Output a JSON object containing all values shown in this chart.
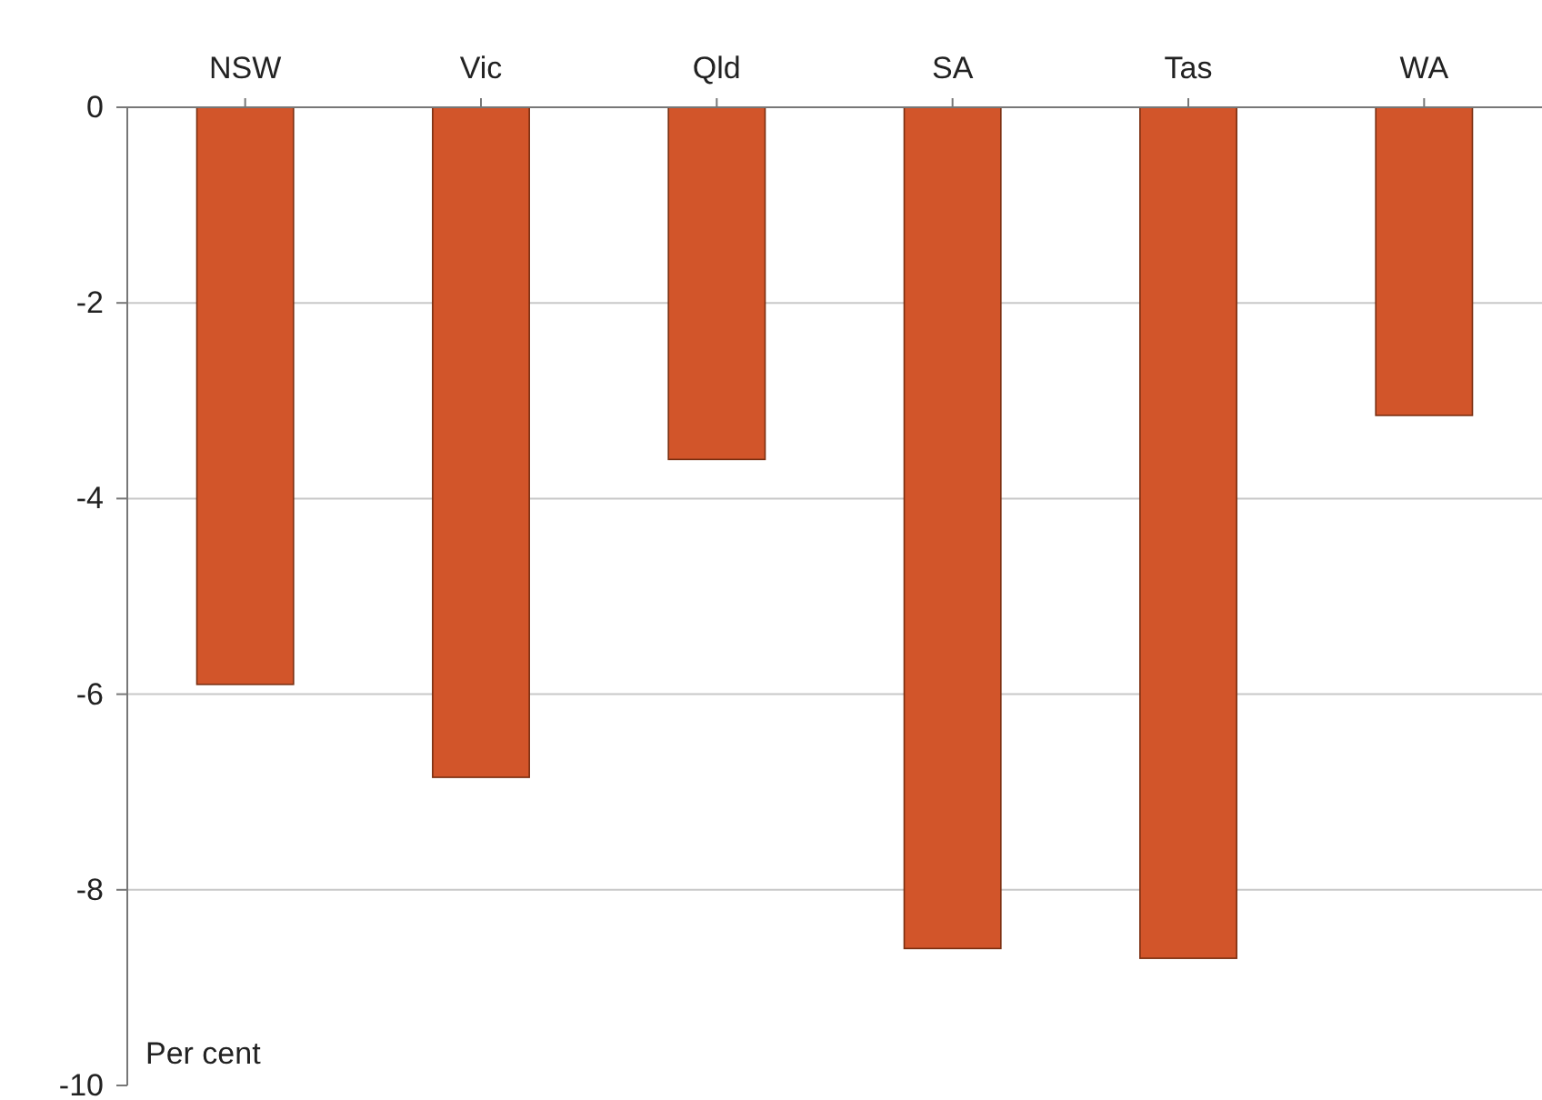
{
  "chart_data": {
    "type": "bar",
    "ylabel": "Per cent",
    "categories": [
      "NSW",
      "Vic",
      "Qld",
      "SA",
      "Tas",
      "WA"
    ],
    "values": [
      -5.9,
      -6.85,
      -3.6,
      -8.6,
      -8.7,
      -3.15
    ],
    "color": "#d2552a",
    "ylim": [
      -10,
      0
    ],
    "yticks": [
      -10,
      -8,
      -6,
      -4,
      -2,
      0
    ],
    "grid": "y"
  }
}
